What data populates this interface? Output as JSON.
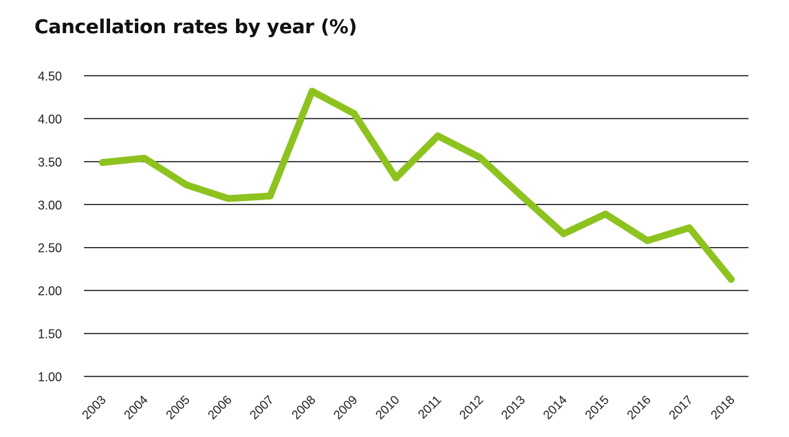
{
  "chart_data": {
    "type": "line",
    "title": "Cancellation rates by year (%)",
    "xlabel": "",
    "ylabel": "",
    "ylim": [
      1.0,
      4.5
    ],
    "yticks": [
      "1.00",
      "1.50",
      "2.00",
      "2.50",
      "3.00",
      "3.50",
      "4.00",
      "4.50"
    ],
    "categories": [
      "2003",
      "2004",
      "2005",
      "2006",
      "2007",
      "2008",
      "2009",
      "2010",
      "2011",
      "2012",
      "2013",
      "2014",
      "2015",
      "2016",
      "2017",
      "2018"
    ],
    "series": [
      {
        "values": [
          3.49,
          3.54,
          3.23,
          3.07,
          3.1,
          4.32,
          4.06,
          3.31,
          3.8,
          3.55,
          3.1,
          2.66,
          2.89,
          2.58,
          2.73,
          2.13
        ],
        "color": "#8dc21f"
      }
    ],
    "grid": true,
    "legend": "none"
  }
}
